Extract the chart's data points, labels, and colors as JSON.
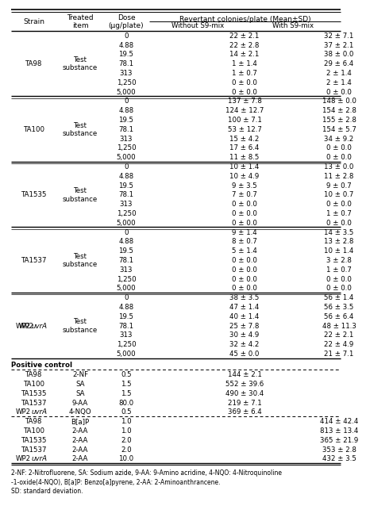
{
  "main_data": [
    {
      "strain": "TA98",
      "item": "Test\nsubstance",
      "rows": [
        [
          "0",
          "22 ± 2.1",
          "32 ± 7.1"
        ],
        [
          "4.88",
          "22 ± 2.8",
          "37 ± 2.1"
        ],
        [
          "19.5",
          "14 ± 2.1",
          "38 ± 0.0"
        ],
        [
          "78.1",
          "1 ± 1.4",
          "29 ± 6.4"
        ],
        [
          "313",
          "1 ± 0.7",
          "2 ± 1.4"
        ],
        [
          "1,250",
          "0 ± 0.0",
          "2 ± 1.4"
        ],
        [
          "5,000",
          "0 ± 0.0",
          "0 ± 0.0"
        ]
      ]
    },
    {
      "strain": "TA100",
      "item": "Test\nsubstance",
      "rows": [
        [
          "0",
          "137 ± 7.8",
          "148 ± 0.0"
        ],
        [
          "4.88",
          "124 ± 12.7",
          "154 ± 2.8"
        ],
        [
          "19.5",
          "100 ± 7.1",
          "155 ± 2.8"
        ],
        [
          "78.1",
          "53 ± 12.7",
          "154 ± 5.7"
        ],
        [
          "313",
          "15 ± 4.2",
          "34 ± 9.2"
        ],
        [
          "1,250",
          "17 ± 6.4",
          "0 ± 0.0"
        ],
        [
          "5,000",
          "11 ± 8.5",
          "0 ± 0.0"
        ]
      ]
    },
    {
      "strain": "TA1535",
      "item": "Test\nsubstance",
      "rows": [
        [
          "0",
          "10 ± 1.4",
          "13 ± 0.0"
        ],
        [
          "4.88",
          "10 ± 4.9",
          "11 ± 2.8"
        ],
        [
          "19.5",
          "9 ± 3.5",
          "9 ± 0.7"
        ],
        [
          "78.1",
          "7 ± 0.7",
          "10 ± 0.7"
        ],
        [
          "313",
          "0 ± 0.0",
          "0 ± 0.0"
        ],
        [
          "1,250",
          "0 ± 0.0",
          "1 ± 0.7"
        ],
        [
          "5,000",
          "0 ± 0.0",
          "0 ± 0.0"
        ]
      ]
    },
    {
      "strain": "TA1537",
      "item": "Test\nsubstance",
      "rows": [
        [
          "0",
          "9 ± 1.4",
          "14 ± 3.5"
        ],
        [
          "4.88",
          "8 ± 0.7",
          "13 ± 2.8"
        ],
        [
          "19.5",
          "5 ± 1.4",
          "10 ± 1.4"
        ],
        [
          "78.1",
          "0 ± 0.0",
          "3 ± 2.8"
        ],
        [
          "313",
          "0 ± 0.0",
          "1 ± 0.7"
        ],
        [
          "1,250",
          "0 ± 0.0",
          "0 ± 0.0"
        ],
        [
          "5,000",
          "0 ± 0.0",
          "0 ± 0.0"
        ]
      ]
    },
    {
      "strain": "WP2uvrA",
      "strain_normal": "WP2",
      "strain_italic": "uvr",
      "strain_end": "A",
      "item": "Test\nsubstance",
      "rows": [
        [
          "0",
          "38 ± 3.5",
          "56 ± 1.4"
        ],
        [
          "4.88",
          "47 ± 1.4",
          "56 ± 3.5"
        ],
        [
          "19.5",
          "40 ± 1.4",
          "56 ± 6.4"
        ],
        [
          "78.1",
          "25 ± 7.8",
          "48 ± 11.3"
        ],
        [
          "313",
          "30 ± 4.9",
          "22 ± 2.1"
        ],
        [
          "1,250",
          "32 ± 4.2",
          "22 ± 4.9"
        ],
        [
          "5,000",
          "45 ± 0.0",
          "21 ± 7.1"
        ]
      ]
    }
  ],
  "pos_ctrl_no_s9": [
    [
      "TA98",
      "2-NF",
      "0.5",
      "144 ± 2.1"
    ],
    [
      "TA100",
      "SA",
      "1.5",
      "552 ± 39.6"
    ],
    [
      "TA1535",
      "SA",
      "1.5",
      "490 ± 30.4"
    ],
    [
      "TA1537",
      "9-AA",
      "80.0",
      "219 ± 7.1"
    ],
    [
      "WP2uvrA",
      "4-NQO",
      "0.5",
      "369 ± 6.4"
    ]
  ],
  "pos_ctrl_s9": [
    [
      "TA98",
      "B[a]P",
      "1.0",
      "414 ± 42.4"
    ],
    [
      "TA100",
      "2-AA",
      "1.0",
      "813 ± 13.4"
    ],
    [
      "TA1535",
      "2-AA",
      "2.0",
      "365 ± 21.9"
    ],
    [
      "TA1537",
      "2-AA",
      "2.0",
      "353 ± 2.8"
    ],
    [
      "WP2uvrA",
      "2-AA",
      "10.0",
      "432 ± 3.5"
    ]
  ],
  "footnote_lines": [
    "2-NF: 2-Nitrofluorene, SA: Sodium azide, 9-AA: 9-Amino acridine, 4-NQO: 4-Nitroquinoline",
    "-1-oxide(4-NQO), B[a]P: Benzo[a]pyrene, 2-AA: 2-Aminoanthrancene.",
    "SD: standard deviation."
  ],
  "bg_color": "#ffffff",
  "text_color": "#000000",
  "fs": 6.2,
  "hfs": 6.5
}
